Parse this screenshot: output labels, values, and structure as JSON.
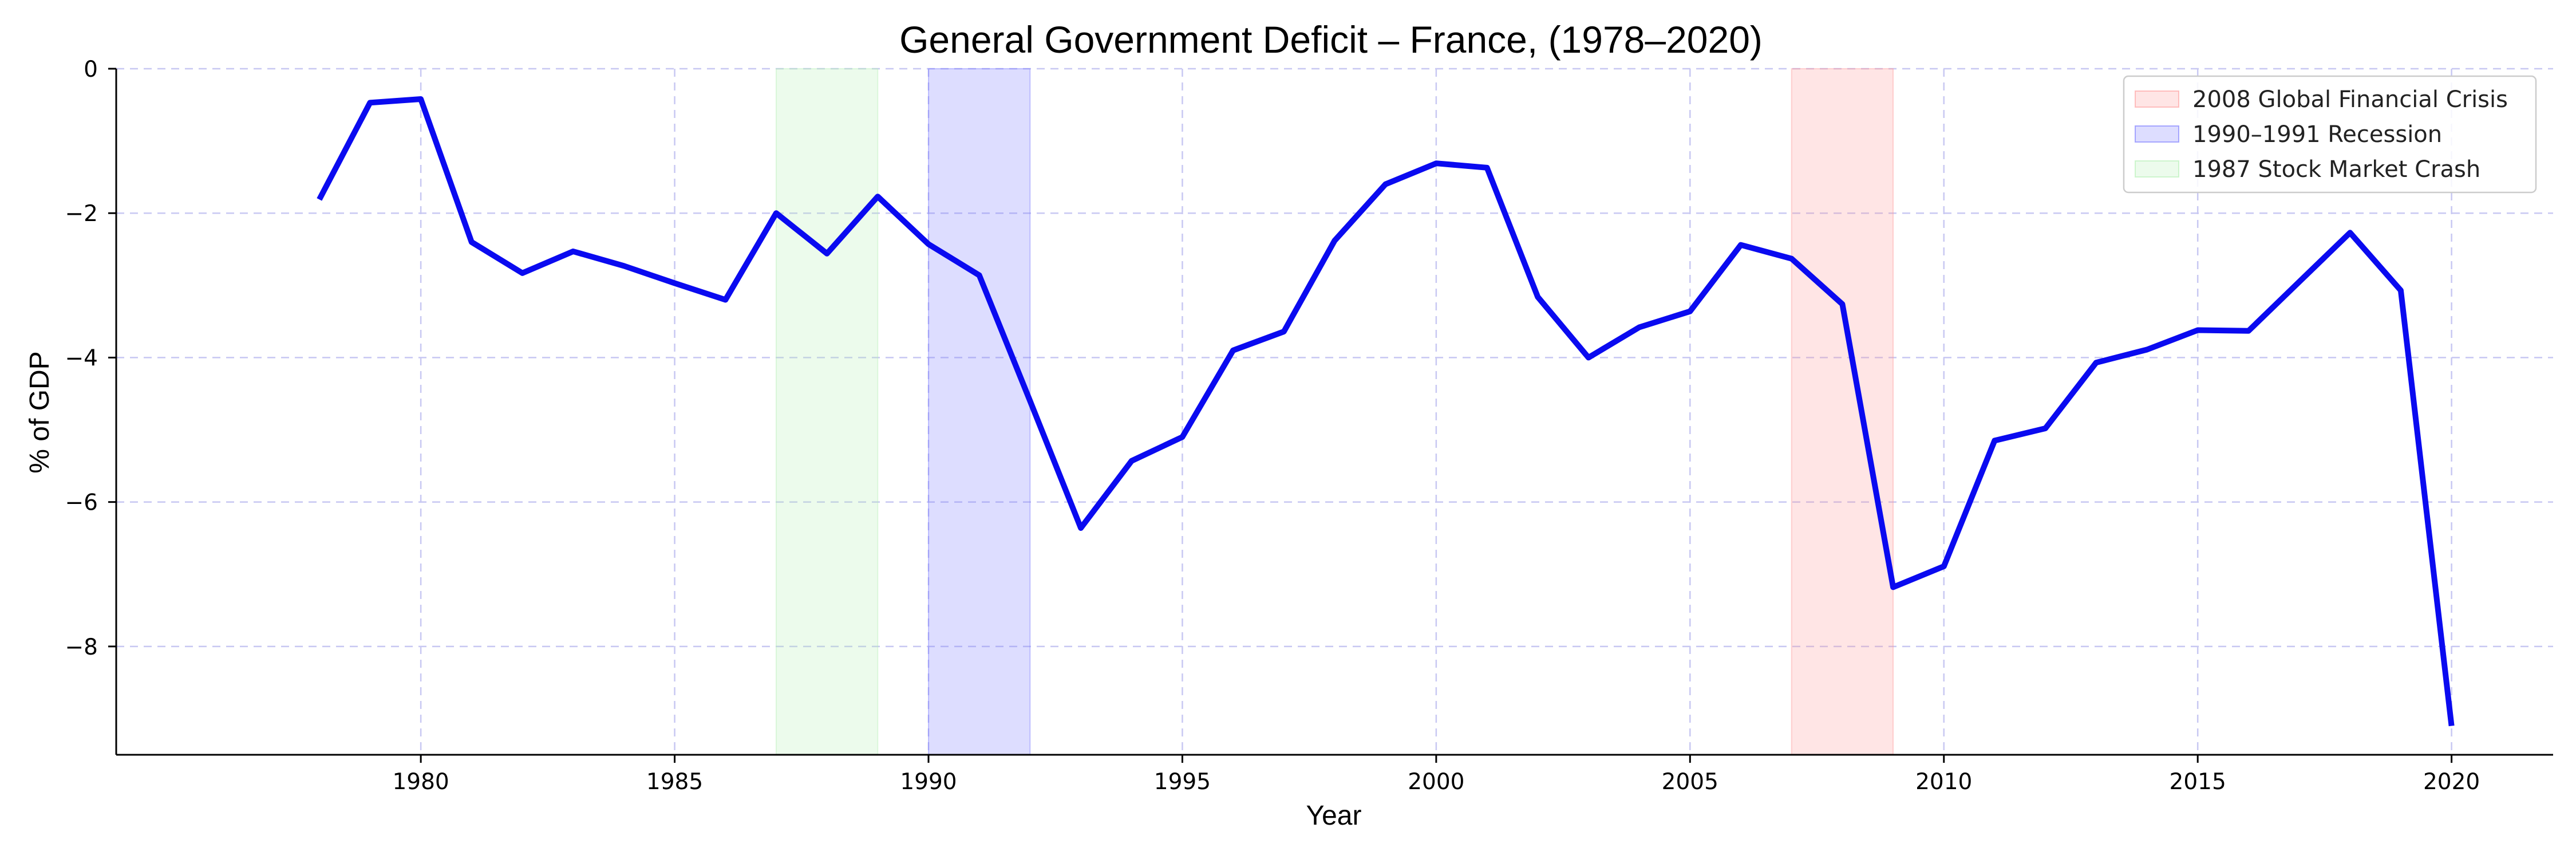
{
  "chart_data": {
    "type": "line",
    "title": "General Government Deficit – France, (1978–2020)",
    "xlabel": "Year",
    "ylabel": "% of GDP",
    "xlim": [
      1974,
      2022
    ],
    "ylim": [
      -9.5,
      0
    ],
    "x_ticks": [
      1980,
      1985,
      1990,
      1995,
      2000,
      2005,
      2010,
      2015,
      2020
    ],
    "y_ticks": [
      0,
      -2,
      -4,
      -6,
      -8
    ],
    "y_tick_labels": [
      "0",
      "−2",
      "−4",
      "−6",
      "−8"
    ],
    "grid": true,
    "legend_position": "top-right",
    "series": [
      {
        "color": "#0a0af0",
        "x": [
          1978,
          1979,
          1980,
          1981,
          1982,
          1983,
          1984,
          1985,
          1986,
          1987,
          1988,
          1989,
          1990,
          1991,
          1992,
          1993,
          1994,
          1995,
          1996,
          1997,
          1998,
          1999,
          2000,
          2001,
          2002,
          2003,
          2004,
          2005,
          2006,
          2007,
          2008,
          2009,
          2010,
          2011,
          2012,
          2013,
          2014,
          2015,
          2016,
          2017,
          2018,
          2019,
          2020
        ],
        "values": [
          -1.81,
          -0.47,
          -0.42,
          -2.4,
          -2.83,
          -2.53,
          -2.73,
          -2.97,
          -3.2,
          -2.0,
          -2.56,
          -1.77,
          -2.43,
          -2.86,
          -4.6,
          -6.36,
          -5.43,
          -5.1,
          -3.9,
          -3.64,
          -2.38,
          -1.6,
          -1.31,
          -1.37,
          -3.16,
          -4.0,
          -3.58,
          -3.36,
          -2.44,
          -2.63,
          -3.26,
          -7.18,
          -6.89,
          -5.15,
          -4.98,
          -4.07,
          -3.89,
          -3.62,
          -3.63,
          -2.95,
          -2.27,
          -3.07,
          -9.1
        ]
      }
    ],
    "shaded_periods": [
      {
        "label": "2008 Global Financial Crisis",
        "start": 2007,
        "end": 2009,
        "color": "#ff9999"
      },
      {
        "label": "1990–1991 Recession",
        "start": 1990,
        "end": 1992,
        "color": "#7777ff"
      },
      {
        "label": "1987 Stock Market Crash",
        "start": 1987,
        "end": 1989,
        "color": "#b3f0b3"
      }
    ]
  }
}
